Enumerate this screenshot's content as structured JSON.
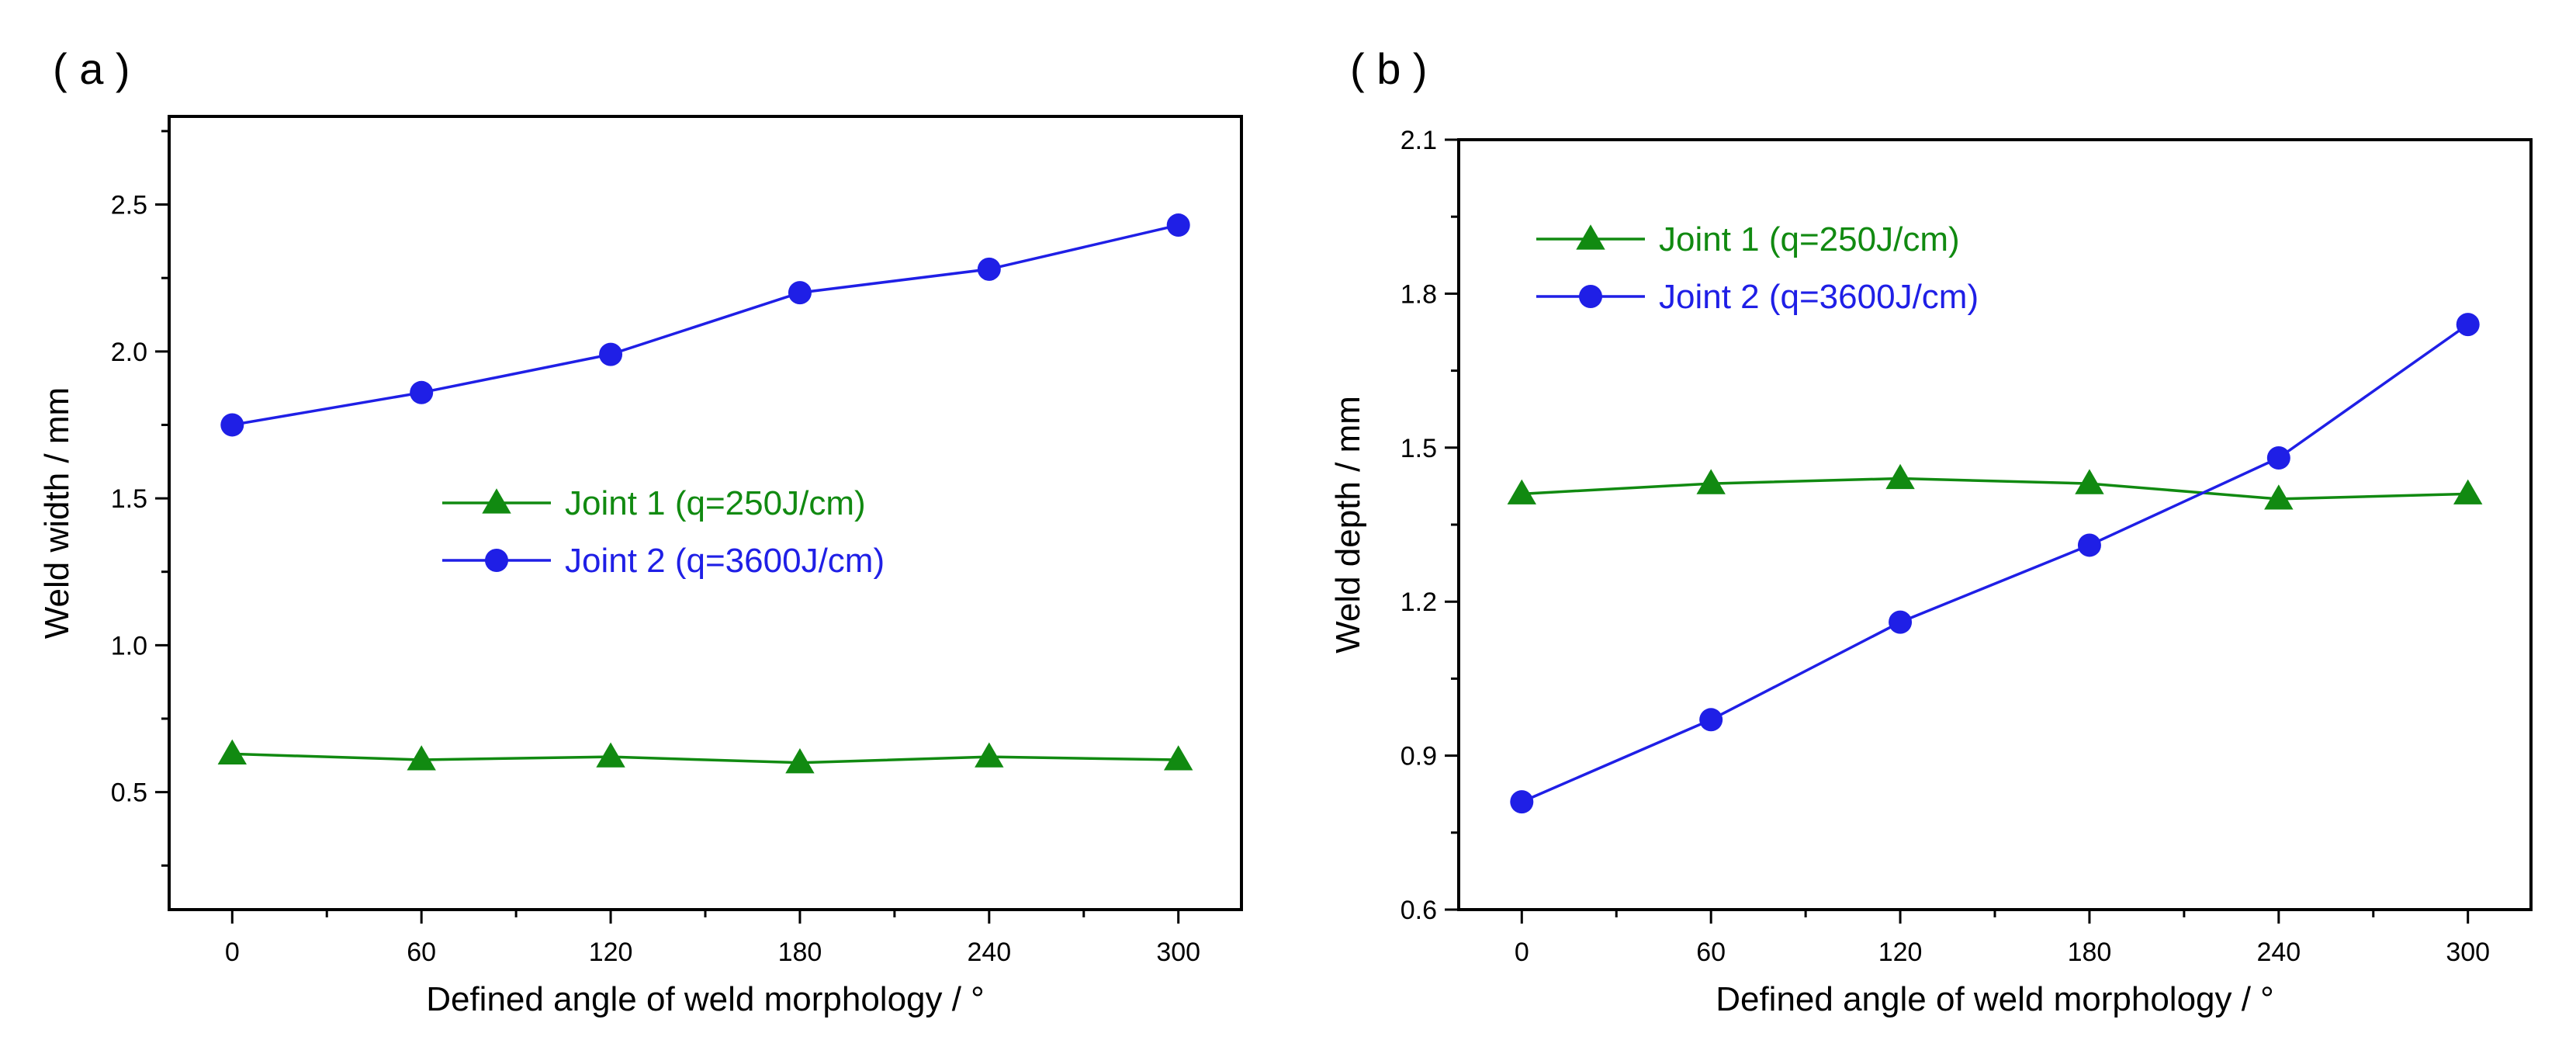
{
  "chart_data": [
    {
      "type": "line",
      "panel_label": "( a )",
      "xlabel": "Defined angle of weld morphology / °",
      "ylabel": "Weld width / mm",
      "x": [
        0,
        60,
        120,
        180,
        240,
        300
      ],
      "xlim": [
        -20,
        320
      ],
      "ylim": [
        0.1,
        2.8
      ],
      "xticks": [
        0,
        60,
        120,
        180,
        240,
        300
      ],
      "yticks": [
        0.5,
        1.0,
        1.5,
        2.0,
        2.5
      ],
      "ytick_labels": [
        "0.5",
        "1.0",
        "1.5",
        "2.0",
        "2.5"
      ],
      "legend_position": "center",
      "series": [
        {
          "name": "Joint 1 (q=250J/cm)",
          "marker": "triangle",
          "color": "#118a11",
          "values": [
            0.63,
            0.61,
            0.62,
            0.6,
            0.62,
            0.61
          ]
        },
        {
          "name": "Joint 2 (q=3600J/cm)",
          "marker": "circle",
          "color": "#1f1fe6",
          "values": [
            1.75,
            1.86,
            1.99,
            2.2,
            2.28,
            2.43
          ]
        }
      ]
    },
    {
      "type": "line",
      "panel_label": "( b )",
      "xlabel": "Defined angle of weld morphology / °",
      "ylabel": "Weld depth / mm",
      "x": [
        0,
        60,
        120,
        180,
        240,
        300
      ],
      "xlim": [
        -20,
        320
      ],
      "ylim": [
        0.6,
        2.1
      ],
      "xticks": [
        0,
        60,
        120,
        180,
        240,
        300
      ],
      "yticks": [
        0.6,
        0.9,
        1.2,
        1.5,
        1.8,
        2.1
      ],
      "ytick_labels": [
        "0.6",
        "0.9",
        "1.2",
        "1.5",
        "1.8",
        "2.1"
      ],
      "legend_position": "top-left",
      "series": [
        {
          "name": "Joint 1 (q=250J/cm)",
          "marker": "triangle",
          "color": "#118a11",
          "values": [
            1.41,
            1.43,
            1.44,
            1.43,
            1.4,
            1.41
          ]
        },
        {
          "name": "Joint 2 (q=3600J/cm)",
          "marker": "circle",
          "color": "#1f1fe6",
          "values": [
            0.81,
            0.97,
            1.16,
            1.31,
            1.48,
            1.74
          ]
        }
      ]
    }
  ]
}
